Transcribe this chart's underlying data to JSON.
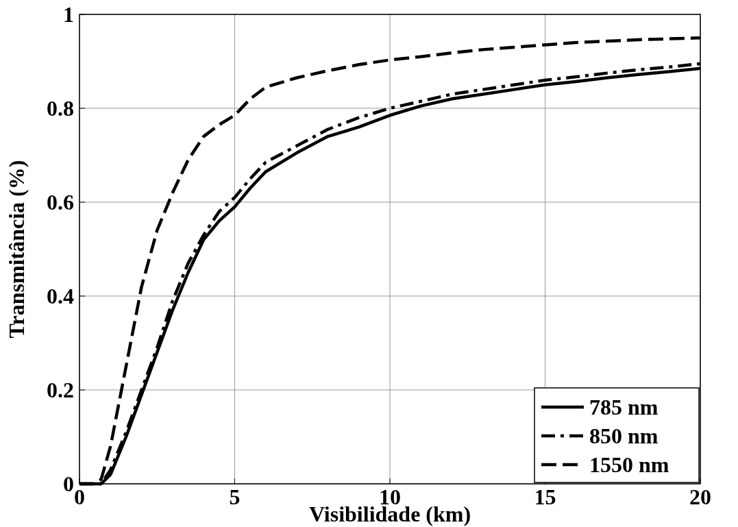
{
  "chart_data": {
    "type": "line",
    "xlabel": "Visibilidade (km)",
    "ylabel": "Transmitância (%)",
    "x": [
      0,
      0.5,
      0.7,
      1,
      1.5,
      2,
      2.5,
      3,
      3.5,
      4,
      4.5,
      5,
      5.5,
      6,
      7,
      8,
      9,
      10,
      11,
      12,
      13,
      14,
      15,
      16,
      17,
      18,
      19,
      20
    ],
    "series": [
      {
        "name": "785 nm",
        "color": "#000000",
        "line_style": "solid",
        "values": [
          0,
          0,
          0,
          0.02,
          0.1,
          0.19,
          0.28,
          0.37,
          0.45,
          0.52,
          0.56,
          0.59,
          0.63,
          0.665,
          0.705,
          0.74,
          0.76,
          0.785,
          0.805,
          0.82,
          0.83,
          0.84,
          0.85,
          0.857,
          0.865,
          0.872,
          0.878,
          0.885
        ]
      },
      {
        "name": "850 nm",
        "color": "#000000",
        "line_style": "dashdot",
        "values": [
          0,
          0,
          0,
          0.03,
          0.11,
          0.2,
          0.29,
          0.39,
          0.47,
          0.53,
          0.58,
          0.61,
          0.65,
          0.685,
          0.72,
          0.755,
          0.78,
          0.8,
          0.815,
          0.83,
          0.84,
          0.85,
          0.86,
          0.867,
          0.875,
          0.882,
          0.888,
          0.895
        ]
      },
      {
        "name": "1550 nm",
        "color": "#000000",
        "line_style": "dashed",
        "values": [
          0,
          0,
          0.01,
          0.08,
          0.25,
          0.42,
          0.54,
          0.62,
          0.69,
          0.74,
          0.765,
          0.785,
          0.82,
          0.845,
          0.865,
          0.88,
          0.893,
          0.903,
          0.91,
          0.918,
          0.925,
          0.93,
          0.935,
          0.94,
          0.943,
          0.946,
          0.948,
          0.95
        ]
      }
    ],
    "xlim": [
      0,
      20
    ],
    "xticks": [
      0,
      5,
      10,
      15,
      20
    ],
    "ylim": [
      0,
      1
    ],
    "yticks": [
      0,
      0.2,
      0.4,
      0.6,
      0.8,
      1
    ],
    "grid": true,
    "legend": "bottom right"
  }
}
